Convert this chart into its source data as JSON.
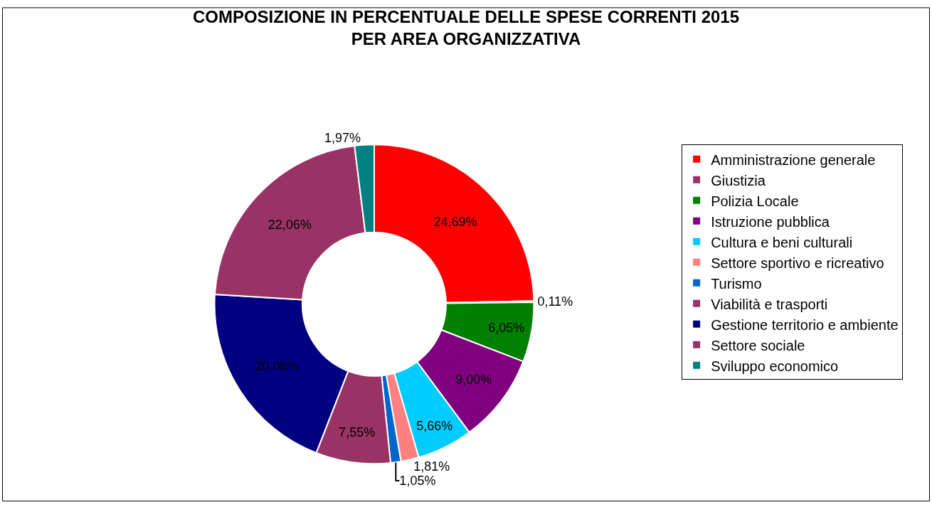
{
  "chart_data": {
    "type": "donut",
    "title": "COMPOSIZIONE IN PERCENTUALE DELLE SPESE CORRENTI 2015\nPER AREA ORGANIZZATIVA",
    "categories": [
      "Amministrazione generale",
      "Giustizia",
      "Polizia Locale",
      "Istruzione pubblica",
      "Cultura e beni culturali",
      "Settore sportivo e ricreativo",
      "Turismo",
      "Viabilità e trasporti",
      "Gestione territorio e ambiente",
      "Settore sociale",
      "Sviluppo economico"
    ],
    "values": [
      24.69,
      0.11,
      6.05,
      9.0,
      5.66,
      1.81,
      1.05,
      7.55,
      20.06,
      22.06,
      1.97
    ],
    "value_labels": [
      "24,69%",
      "0,11%",
      "6,05%",
      "9,00%",
      "5,66%",
      "1,81%",
      "1,05%",
      "7,55%",
      "20,06%",
      "22,06%",
      "1,97%"
    ],
    "colors": [
      "#ff0000",
      "#993366",
      "#008000",
      "#800080",
      "#00ccff",
      "#ff8080",
      "#0066cc",
      "#993366",
      "#000080",
      "#993366",
      "#008080"
    ],
    "legend": "right"
  }
}
